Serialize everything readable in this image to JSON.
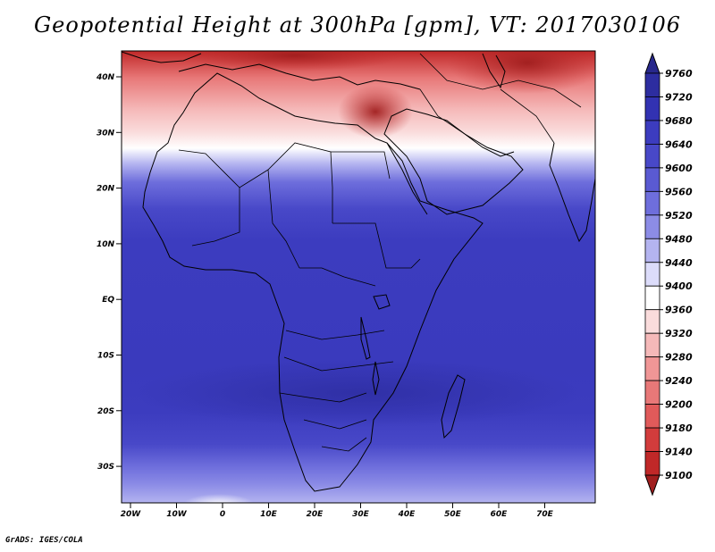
{
  "title": "Geopotential Height at 300hPa [gpm], VT: 2017030106",
  "credit": "GrADS: IGES/COLA",
  "map": {
    "region": "Africa",
    "lon_range": [
      -23,
      80
    ],
    "lat_range": [
      -37,
      45
    ],
    "lat_ticks": [
      "40N",
      "30N",
      "20N",
      "10N",
      "EQ",
      "10S",
      "20S",
      "30S"
    ],
    "lon_ticks": [
      "20W",
      "10W",
      "0",
      "10E",
      "20E",
      "30E",
      "40E",
      "50E",
      "60E",
      "70E"
    ],
    "field": "Geopotential Height",
    "level": "300hPa",
    "units": "gpm"
  },
  "colorbar": {
    "labels": [
      "9760",
      "9720",
      "9680",
      "9640",
      "9600",
      "9560",
      "9520",
      "9480",
      "9440",
      "9400",
      "9360",
      "9320",
      "9280",
      "9240",
      "9200",
      "9180",
      "9140",
      "9100"
    ],
    "colors": [
      "#28288c",
      "#2d2da0",
      "#3232b2",
      "#3c3cbf",
      "#4848c8",
      "#5a5ad2",
      "#6e6edc",
      "#8c8ce6",
      "#b4b4f0",
      "#dcdcfa",
      "#ffffff",
      "#fadcdc",
      "#f5b9b9",
      "#f09696",
      "#e87878",
      "#e05a5a",
      "#d23c3c",
      "#c02828",
      "#a01e1e"
    ]
  }
}
